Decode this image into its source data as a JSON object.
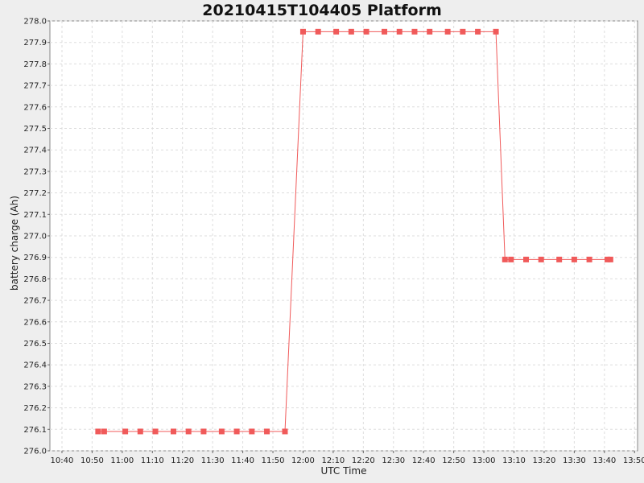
{
  "chart_data": {
    "type": "line",
    "title": "20210415T104405 Platform",
    "xlabel": "UTC Time",
    "ylabel": "battery charge (Ah)",
    "x_ticks": [
      "10:40",
      "10:50",
      "11:00",
      "11:10",
      "11:20",
      "11:30",
      "11:40",
      "11:50",
      "12:00",
      "12:10",
      "12:20",
      "12:30",
      "12:40",
      "12:50",
      "13:00",
      "13:10",
      "13:20",
      "13:30",
      "13:40",
      "13:50"
    ],
    "y_ticks": [
      "276.0",
      "276.1",
      "276.2",
      "276.3",
      "276.4",
      "276.5",
      "276.6",
      "276.7",
      "276.8",
      "276.9",
      "277.0",
      "277.1",
      "277.2",
      "277.3",
      "277.4",
      "277.5",
      "277.6",
      "277.7",
      "277.8",
      "277.9",
      "278.0"
    ],
    "xlim": [
      "10:36",
      "13:51"
    ],
    "ylim": [
      276.0,
      278.0
    ],
    "grid": true,
    "series": [
      {
        "color": "#f05a5a",
        "marker": "square",
        "points": [
          [
            "10:52",
            276.09
          ],
          [
            "10:54",
            276.09
          ],
          [
            "11:01",
            276.09
          ],
          [
            "11:06",
            276.09
          ],
          [
            "11:11",
            276.09
          ],
          [
            "11:17",
            276.09
          ],
          [
            "11:22",
            276.09
          ],
          [
            "11:27",
            276.09
          ],
          [
            "11:33",
            276.09
          ],
          [
            "11:38",
            276.09
          ],
          [
            "11:43",
            276.09
          ],
          [
            "11:48",
            276.09
          ],
          [
            "11:54",
            276.09
          ],
          [
            "12:00",
            277.95
          ],
          [
            "12:05",
            277.95
          ],
          [
            "12:11",
            277.95
          ],
          [
            "12:16",
            277.95
          ],
          [
            "12:21",
            277.95
          ],
          [
            "12:27",
            277.95
          ],
          [
            "12:32",
            277.95
          ],
          [
            "12:37",
            277.95
          ],
          [
            "12:42",
            277.95
          ],
          [
            "12:48",
            277.95
          ],
          [
            "12:53",
            277.95
          ],
          [
            "12:58",
            277.95
          ],
          [
            "13:04",
            277.95
          ],
          [
            "13:07",
            276.89
          ],
          [
            "13:09",
            276.89
          ],
          [
            "13:14",
            276.89
          ],
          [
            "13:19",
            276.89
          ],
          [
            "13:25",
            276.89
          ],
          [
            "13:30",
            276.89
          ],
          [
            "13:35",
            276.89
          ],
          [
            "13:41",
            276.89
          ],
          [
            "13:42",
            276.89
          ]
        ]
      }
    ]
  }
}
